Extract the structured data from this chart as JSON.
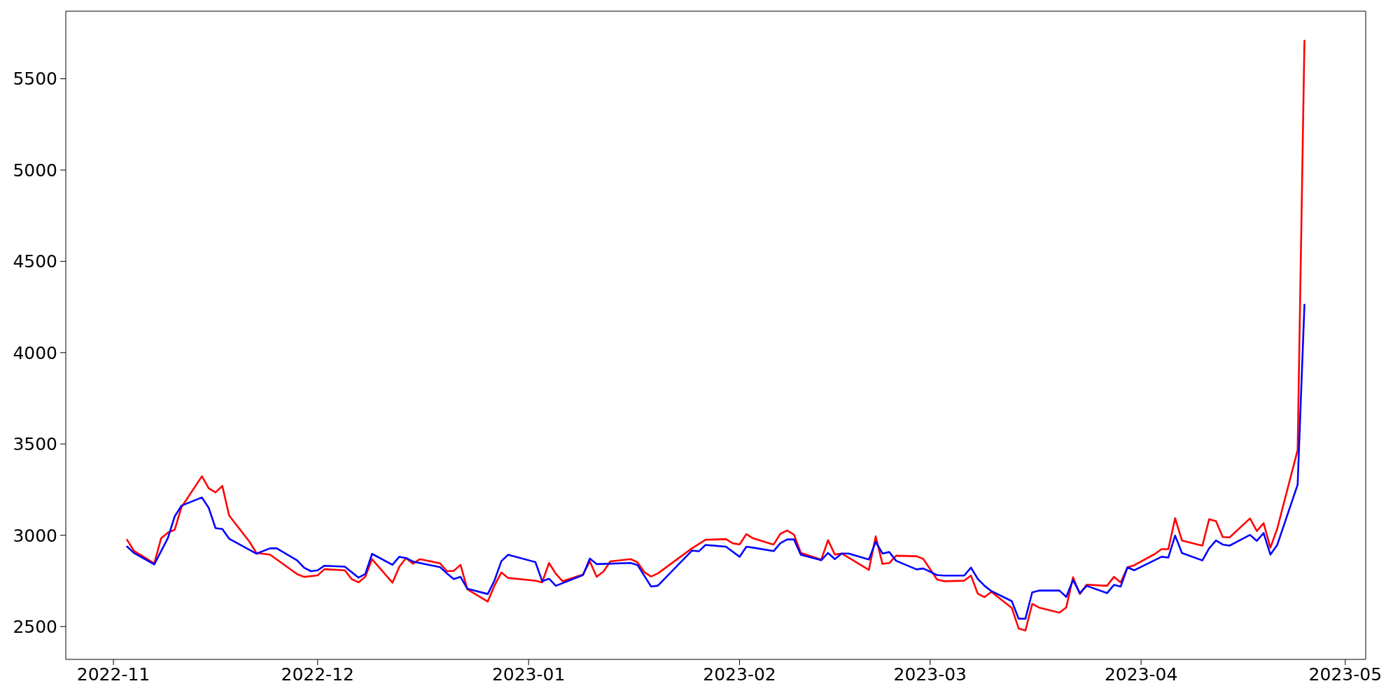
{
  "chart_data": {
    "type": "line",
    "xlim": [
      "2022-10-25",
      "2023-05-04"
    ],
    "xticks": [
      "2022-11",
      "2022-12",
      "2023-01",
      "2023-02",
      "2023-03",
      "2023-04",
      "2023-05"
    ],
    "ylim": [
      2320,
      5870
    ],
    "yticks": [
      2500,
      3000,
      3500,
      4000,
      4500,
      5000,
      5500
    ],
    "grid": false,
    "legend": false,
    "marker": "none",
    "line_style": "solid",
    "series": [
      {
        "color": "#ff0000",
        "x": [
          "2022-11-03",
          "2022-11-04",
          "2022-11-07",
          "2022-11-08",
          "2022-11-09",
          "2022-11-10",
          "2022-11-11",
          "2022-11-14",
          "2022-11-15",
          "2022-11-16",
          "2022-11-17",
          "2022-11-18",
          "2022-11-21",
          "2022-11-22",
          "2022-11-24",
          "2022-11-28",
          "2022-11-29",
          "2022-12-01",
          "2022-12-02",
          "2022-12-05",
          "2022-12-06",
          "2022-12-07",
          "2022-12-08",
          "2022-12-09",
          "2022-12-12",
          "2022-12-13",
          "2022-12-14",
          "2022-12-15",
          "2022-12-16",
          "2022-12-19",
          "2022-12-20",
          "2022-12-21",
          "2022-12-22",
          "2022-12-23",
          "2022-12-26",
          "2022-12-27",
          "2022-12-28",
          "2022-12-29",
          "2023-01-02",
          "2023-01-03",
          "2023-01-04",
          "2023-01-05",
          "2023-01-06",
          "2023-01-09",
          "2023-01-10",
          "2023-01-11",
          "2023-01-12",
          "2023-01-13",
          "2023-01-16",
          "2023-01-17",
          "2023-01-18",
          "2023-01-19",
          "2023-01-20",
          "2023-01-25",
          "2023-01-27",
          "2023-01-30",
          "2023-01-31",
          "2023-02-01",
          "2023-02-02",
          "2023-02-03",
          "2023-02-06",
          "2023-02-07",
          "2023-02-08",
          "2023-02-09",
          "2023-02-10",
          "2023-02-13",
          "2023-02-14",
          "2023-02-15",
          "2023-02-16",
          "2023-02-20",
          "2023-02-21",
          "2023-02-22",
          "2023-02-23",
          "2023-02-24",
          "2023-02-27",
          "2023-02-28",
          "2023-03-02",
          "2023-03-03",
          "2023-03-06",
          "2023-03-07",
          "2023-03-08",
          "2023-03-09",
          "2023-03-10",
          "2023-03-13",
          "2023-03-14",
          "2023-03-15",
          "2023-03-16",
          "2023-03-17",
          "2023-03-20",
          "2023-03-21",
          "2023-03-22",
          "2023-03-23",
          "2023-03-24",
          "2023-03-27",
          "2023-03-28",
          "2023-03-29",
          "2023-03-30",
          "2023-03-31",
          "2023-04-03",
          "2023-04-04",
          "2023-04-05",
          "2023-04-06",
          "2023-04-07",
          "2023-04-10",
          "2023-04-11",
          "2023-04-12",
          "2023-04-13",
          "2023-04-14",
          "2023-04-17",
          "2023-04-18",
          "2023-04-19",
          "2023-04-20",
          "2023-04-21",
          "2023-04-24",
          "2023-04-25"
        ],
        "values": [
          2975,
          2915,
          2846,
          2983,
          3014,
          3030,
          3154,
          3323,
          3257,
          3235,
          3270,
          3108,
          2964,
          2903,
          2894,
          2787,
          2772,
          2780,
          2814,
          2808,
          2760,
          2742,
          2772,
          2869,
          2740,
          2827,
          2875,
          2844,
          2869,
          2846,
          2803,
          2805,
          2838,
          2704,
          2637,
          2725,
          2796,
          2766,
          2751,
          2742,
          2848,
          2789,
          2748,
          2785,
          2857,
          2772,
          2801,
          2857,
          2869,
          2852,
          2798,
          2774,
          2791,
          2928,
          2975,
          2979,
          2956,
          2950,
          3006,
          2983,
          2949,
          3008,
          3026,
          3003,
          2904,
          2866,
          2973,
          2894,
          2900,
          2810,
          2994,
          2843,
          2848,
          2888,
          2885,
          2870,
          2758,
          2748,
          2751,
          2779,
          2680,
          2661,
          2690,
          2602,
          2490,
          2478,
          2624,
          2604,
          2576,
          2605,
          2770,
          2678,
          2729,
          2723,
          2772,
          2742,
          2824,
          2836,
          2897,
          2924,
          2924,
          3093,
          2971,
          2943,
          3088,
          3077,
          2990,
          2988,
          3092,
          3023,
          3066,
          2932,
          3036,
          3467,
          5709
        ]
      },
      {
        "color": "#0000ff",
        "x": [
          "2022-11-03",
          "2022-11-04",
          "2022-11-07",
          "2022-11-09",
          "2022-11-10",
          "2022-11-11",
          "2022-11-14",
          "2022-11-15",
          "2022-11-16",
          "2022-11-17",
          "2022-11-18",
          "2022-11-22",
          "2022-11-24",
          "2022-11-25",
          "2022-11-28",
          "2022-11-29",
          "2022-11-30",
          "2022-12-01",
          "2022-12-02",
          "2022-12-05",
          "2022-12-07",
          "2022-12-08",
          "2022-12-09",
          "2022-12-12",
          "2022-12-13",
          "2022-12-14",
          "2022-12-15",
          "2022-12-19",
          "2022-12-20",
          "2022-12-21",
          "2022-12-22",
          "2022-12-23",
          "2022-12-26",
          "2022-12-27",
          "2022-12-28",
          "2022-12-29",
          "2023-01-02",
          "2023-01-03",
          "2023-01-04",
          "2023-01-05",
          "2023-01-09",
          "2023-01-10",
          "2023-01-11",
          "2023-01-16",
          "2023-01-17",
          "2023-01-19",
          "2023-01-20",
          "2023-01-25",
          "2023-01-26",
          "2023-01-27",
          "2023-01-30",
          "2023-02-01",
          "2023-02-02",
          "2023-02-03",
          "2023-02-06",
          "2023-02-07",
          "2023-02-08",
          "2023-02-09",
          "2023-02-10",
          "2023-02-13",
          "2023-02-14",
          "2023-02-15",
          "2023-02-16",
          "2023-02-17",
          "2023-02-20",
          "2023-02-21",
          "2023-02-22",
          "2023-02-23",
          "2023-02-24",
          "2023-02-27",
          "2023-02-28",
          "2023-03-02",
          "2023-03-03",
          "2023-03-06",
          "2023-03-07",
          "2023-03-08",
          "2023-03-09",
          "2023-03-10",
          "2023-03-13",
          "2023-03-14",
          "2023-03-15",
          "2023-03-16",
          "2023-03-17",
          "2023-03-20",
          "2023-03-21",
          "2023-03-22",
          "2023-03-23",
          "2023-03-24",
          "2023-03-27",
          "2023-03-28",
          "2023-03-29",
          "2023-03-30",
          "2023-03-31",
          "2023-04-04",
          "2023-04-05",
          "2023-04-06",
          "2023-04-07",
          "2023-04-10",
          "2023-04-11",
          "2023-04-12",
          "2023-04-13",
          "2023-04-14",
          "2023-04-17",
          "2023-04-18",
          "2023-04-19",
          "2023-04-20",
          "2023-04-21",
          "2023-04-24",
          "2023-04-25"
        ],
        "values": [
          2938,
          2903,
          2840,
          2985,
          3103,
          3162,
          3207,
          3150,
          3039,
          3034,
          2981,
          2899,
          2928,
          2928,
          2862,
          2823,
          2803,
          2808,
          2833,
          2828,
          2768,
          2787,
          2898,
          2838,
          2882,
          2875,
          2856,
          2825,
          2791,
          2760,
          2772,
          2707,
          2678,
          2753,
          2858,
          2893,
          2853,
          2748,
          2762,
          2723,
          2782,
          2872,
          2842,
          2848,
          2837,
          2719,
          2724,
          2916,
          2912,
          2947,
          2937,
          2882,
          2937,
          2932,
          2913,
          2957,
          2977,
          2977,
          2893,
          2863,
          2903,
          2869,
          2900,
          2900,
          2867,
          2964,
          2900,
          2908,
          2860,
          2813,
          2818,
          2782,
          2779,
          2779,
          2823,
          2761,
          2723,
          2694,
          2639,
          2543,
          2543,
          2687,
          2697,
          2697,
          2662,
          2755,
          2683,
          2723,
          2683,
          2728,
          2719,
          2824,
          2808,
          2882,
          2878,
          2998,
          2903,
          2862,
          2928,
          2971,
          2949,
          2943,
          3002,
          2969,
          3012,
          2894,
          2947,
          3277,
          4263
        ]
      }
    ]
  }
}
